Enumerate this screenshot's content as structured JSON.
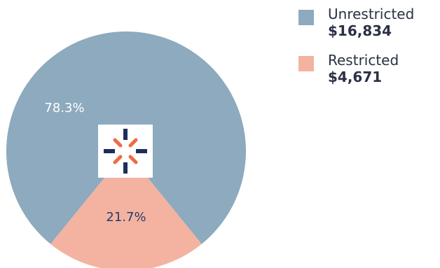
{
  "chart_data": {
    "type": "pie",
    "slices": [
      {
        "name": "Unrestricted",
        "value": 16834,
        "value_label": "$16,834",
        "percent_label": "78.3%",
        "color": "#8daabe",
        "label_color": "#ffffff"
      },
      {
        "name": "Restricted",
        "value": 4671,
        "value_label": "$4,671",
        "percent_label": "21.7%",
        "color": "#f3b3a0",
        "label_color": "#2a3a6a"
      }
    ],
    "legend_position": "top-right"
  },
  "center_logo": {
    "icon": "burst-logo-icon",
    "colors": {
      "navy": "#1f2d5c",
      "orange": "#ee6b43"
    }
  }
}
